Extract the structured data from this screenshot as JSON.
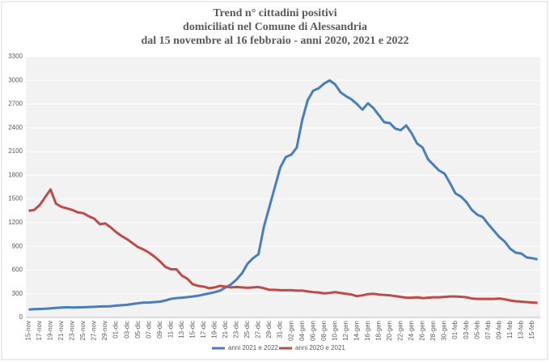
{
  "chart_data": {
    "type": "line",
    "title": [
      "Trend n° cittadini positivi",
      "domiciliati nel Comune di Alessandria",
      "dal 15 novembre al 16 febbraio - anni 2020, 2021 e 2022"
    ],
    "categories": [
      "15-nov",
      null,
      "17-nov",
      null,
      "19-nov",
      null,
      "21-nov",
      null,
      "23-nov",
      null,
      "25-nov",
      null,
      "27-nov",
      null,
      "29-nov",
      null,
      "01-dic",
      null,
      "03-dic",
      null,
      "05-dic",
      null,
      "07-dic",
      null,
      "09-dic",
      null,
      "11-dic",
      null,
      "13-dic",
      null,
      "15-dic",
      null,
      "17-dic",
      null,
      "19-dic",
      null,
      "21-dic",
      null,
      "23-dic",
      null,
      "25-dic",
      null,
      "27-dic",
      null,
      "29-dic",
      null,
      "31-dic",
      null,
      "02-gen",
      null,
      "04-gen",
      null,
      "06-gen",
      null,
      "08-gen",
      null,
      "10-gen",
      null,
      "12-gen",
      null,
      "14-gen",
      null,
      "16-gen",
      null,
      "18-gen",
      null,
      "20-gen",
      null,
      "22-gen",
      null,
      "24-gen",
      null,
      "26-gen",
      null,
      "28-gen",
      null,
      "30-gen",
      null,
      "01-feb",
      null,
      "03-feb",
      null,
      "05-feb",
      null,
      "07-feb",
      null,
      "09-feb",
      null,
      "11-feb",
      null,
      "13-feb",
      null,
      "15-feb",
      null
    ],
    "series": [
      {
        "name": "anni 2021 e 2022",
        "color": "#4a7ebb",
        "values": [
          100,
          105,
          108,
          110,
          115,
          120,
          125,
          130,
          125,
          128,
          130,
          132,
          135,
          138,
          140,
          142,
          150,
          155,
          160,
          170,
          180,
          188,
          188,
          195,
          200,
          215,
          235,
          245,
          250,
          258,
          265,
          275,
          290,
          305,
          320,
          340,
          380,
          420,
          480,
          560,
          680,
          750,
          800,
          1150,
          1400,
          1650,
          1900,
          2030,
          2060,
          2150,
          2500,
          2750,
          2870,
          2900,
          2960,
          3000,
          2950,
          2850,
          2800,
          2760,
          2700,
          2630,
          2710,
          2650,
          2560,
          2470,
          2460,
          2390,
          2370,
          2430,
          2330,
          2200,
          2150,
          2000,
          1930,
          1860,
          1820,
          1700,
          1570,
          1530,
          1460,
          1360,
          1300,
          1270,
          1180,
          1100,
          1020,
          960,
          870,
          820,
          810,
          760,
          750,
          735
        ]
      },
      {
        "name": "anni 2020 e 2021",
        "color": "#be4b48",
        "values": [
          1350,
          1360,
          1420,
          1520,
          1620,
          1440,
          1400,
          1380,
          1360,
          1330,
          1320,
          1280,
          1250,
          1180,
          1190,
          1140,
          1080,
          1030,
          990,
          940,
          890,
          860,
          820,
          770,
          710,
          640,
          610,
          610,
          530,
          490,
          420,
          400,
          390,
          370,
          380,
          400,
          390,
          380,
          385,
          380,
          375,
          380,
          385,
          370,
          350,
          350,
          345,
          345,
          345,
          340,
          340,
          330,
          320,
          315,
          305,
          310,
          320,
          310,
          300,
          290,
          270,
          280,
          295,
          300,
          290,
          285,
          280,
          270,
          260,
          250,
          250,
          255,
          245,
          250,
          255,
          255,
          260,
          265,
          265,
          262,
          255,
          240,
          235,
          235,
          235,
          235,
          240,
          230,
          215,
          205,
          200,
          195,
          190,
          185
        ]
      }
    ],
    "ylim": [
      0,
      3300
    ],
    "yticks": [
      0,
      300,
      600,
      900,
      1200,
      1500,
      1800,
      2100,
      2400,
      2700,
      3000,
      3300
    ],
    "grid": true,
    "legend": "bottom"
  }
}
